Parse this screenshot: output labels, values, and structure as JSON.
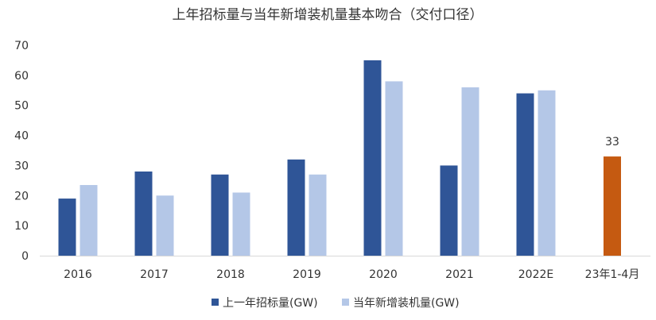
{
  "chart_data": {
    "type": "bar",
    "title": "上年招标量与当年新增装机量基本吻合（交付口径）",
    "categories": [
      "2016",
      "2017",
      "2018",
      "2019",
      "2020",
      "2021",
      "2022E",
      "23年1-4月"
    ],
    "series": [
      {
        "name": "上一年招标量(GW)",
        "values": [
          19,
          28,
          27,
          32,
          65,
          30,
          54,
          33
        ]
      },
      {
        "name": "当年新增装机量(GW)",
        "values": [
          23.5,
          20,
          21,
          27,
          58,
          56,
          55,
          null
        ]
      }
    ],
    "highlight": {
      "category_index": 7,
      "series_index": 0,
      "color": "#C55A11",
      "label": "33"
    },
    "colors": [
      "#2F5597",
      "#B4C7E7"
    ],
    "yticks": [
      "0",
      "10",
      "20",
      "30",
      "40",
      "50",
      "60",
      "70"
    ],
    "ylim": [
      0,
      70
    ],
    "grid": false,
    "legend_position": "bottom-center"
  }
}
